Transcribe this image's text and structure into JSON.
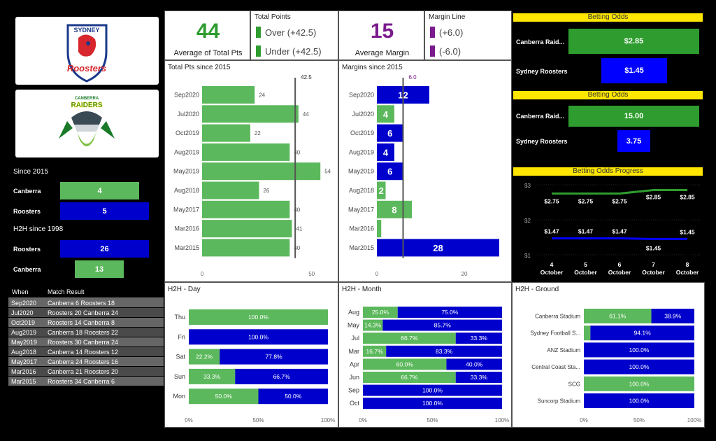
{
  "teams": {
    "home_logo": {
      "top": "SYDNEY",
      "main": "Roosters"
    },
    "away_logo": {
      "top": "CANBERRA",
      "main": "RAIDERS"
    }
  },
  "since2015": {
    "title": "Since 2015",
    "rows": [
      {
        "team": "Canberra",
        "value": "4",
        "color": "#5cb85c"
      },
      {
        "team": "Roosters",
        "value": "5",
        "color": "#0000cc"
      }
    ]
  },
  "h2h1998": {
    "title": "H2H since 1998",
    "rows": [
      {
        "team": "Roosters",
        "value": "26",
        "color": "#0000cc"
      },
      {
        "team": "Canberra",
        "value": "13",
        "color": "#5cb85c"
      }
    ]
  },
  "match_results": {
    "headers": [
      "When",
      "Match Result"
    ],
    "rows": [
      [
        "Sep2020",
        "Canberra 6 Roosters 18"
      ],
      [
        "Jul2020",
        "Roosters 20 Canberra 24"
      ],
      [
        "Oct2019",
        "Roosters 14 Canberra 8"
      ],
      [
        "Aug2019",
        "Canberra 18 Roosters 22"
      ],
      [
        "May2019",
        "Roosters 30 Canberra 24"
      ],
      [
        "Aug2018",
        "Canberra 14 Roosters 12"
      ],
      [
        "May2017",
        "Canberra 24 Roosters 16"
      ],
      [
        "Mar2016",
        "Canberra 21 Roosters 20"
      ],
      [
        "Mar2015",
        "Roosters 34 Canberra 6"
      ]
    ]
  },
  "kpi_total": {
    "value": "44",
    "label": "Average of Total Pts"
  },
  "total_points_legend": {
    "title": "Total Points",
    "items": [
      "Over (+42.5)",
      "Under (+42.5)"
    ]
  },
  "kpi_margin": {
    "value": "15",
    "label": "Average Margin"
  },
  "margin_line_legend": {
    "title": "Margin Line",
    "items": [
      "(+6.0)",
      "(-6.0)"
    ]
  },
  "odds1": {
    "title": "Betting Odds",
    "rows": [
      {
        "team": "Canberra Raid...",
        "value": "$2.85",
        "color": "#2e9c2e"
      },
      {
        "team": "Sydney Roosters",
        "value": "$1.45",
        "color": "#0000ff"
      }
    ]
  },
  "odds2": {
    "title": "Betting Odds",
    "rows": [
      {
        "team": "Canberra Raid...",
        "value": "15.00",
        "color": "#2e9c2e"
      },
      {
        "team": "Sydney Roosters",
        "value": "3.75",
        "color": "#0000ff"
      }
    ]
  },
  "chart_data": [
    {
      "type": "bar",
      "title": "Total Pts since 2015",
      "categories": [
        "Sep2020",
        "Jul2020",
        "Oct2019",
        "Aug2019",
        "May2019",
        "Aug2018",
        "May2017",
        "Mar2016",
        "Mar2015"
      ],
      "values": [
        24,
        44,
        22,
        40,
        54,
        26,
        40,
        41,
        40
      ],
      "reference_line": {
        "value": 42.5,
        "label": "42.5"
      },
      "xticks": [
        0,
        50
      ],
      "xlim": [
        0,
        60
      ]
    },
    {
      "type": "bar",
      "title": "Margins since 2015",
      "categories": [
        "Sep2020",
        "Jul2020",
        "Oct2019",
        "Aug2019",
        "May2019",
        "Aug2018",
        "May2017",
        "Mar2016",
        "Mar2015"
      ],
      "values": [
        12,
        4,
        6,
        4,
        6,
        2,
        8,
        1,
        28
      ],
      "bar_labels": [
        "12",
        "4",
        "6",
        "4",
        "6",
        "2",
        "8",
        "",
        "28"
      ],
      "colors": [
        "#0000cc",
        "#5cb85c",
        "#0000cc",
        "#0000cc",
        "#0000cc",
        "#5cb85c",
        "#5cb85c",
        "#5cb85c",
        "#0000cc"
      ],
      "reference_line": {
        "value": 6,
        "label": "6.0"
      },
      "xticks": [
        0,
        20
      ],
      "xlim": [
        0,
        28
      ]
    },
    {
      "type": "line",
      "title": "Betting Odds Progress",
      "x": [
        "4\nOctober",
        "5\nOctober",
        "6\nOctober",
        "7\nOctober",
        "8\nOctober"
      ],
      "series": [
        {
          "values": [
            2.75,
            2.75,
            2.75,
            2.85,
            2.85
          ],
          "labels": [
            "$2.75",
            "$2.75",
            "$2.75",
            "$2.85",
            "$2.85"
          ],
          "color": "#2e9c2e"
        },
        {
          "values": [
            1.47,
            1.47,
            1.47,
            1.45,
            1.45
          ],
          "labels": [
            "$1.47",
            "$1.47",
            "$1.47",
            "$1.45",
            "$1.45"
          ],
          "color": "#0000ff"
        }
      ],
      "yticks": [
        "$3",
        "$2",
        "$1"
      ],
      "ylim": [
        1,
        3
      ]
    },
    {
      "type": "bar",
      "stacked": true,
      "title": "H2H - Day",
      "categories": [
        "Thu",
        "Fri",
        "Sat",
        "Sun",
        "Mon"
      ],
      "series": [
        {
          "values": [
            100,
            0,
            22.2,
            33.3,
            50
          ],
          "color": "#5cb85c"
        },
        {
          "values": [
            0,
            100,
            77.8,
            66.7,
            50
          ],
          "color": "#0000cc"
        }
      ],
      "xticks": [
        "0%",
        "50%",
        "100%"
      ]
    },
    {
      "type": "bar",
      "stacked": true,
      "title": "H2H - Month",
      "categories": [
        "Aug",
        "May",
        "Jul",
        "Mar",
        "Apr",
        "Jun",
        "Sep",
        "Oct"
      ],
      "series": [
        {
          "values": [
            25,
            14.3,
            66.7,
            16.7,
            60,
            66.7,
            0,
            0
          ],
          "color": "#5cb85c"
        },
        {
          "values": [
            75,
            85.7,
            33.3,
            83.3,
            40,
            33.3,
            100,
            100
          ],
          "color": "#0000cc"
        }
      ],
      "xticks": [
        "0%",
        "50%",
        "100%"
      ]
    },
    {
      "type": "bar",
      "stacked": true,
      "title": "H2H - Ground",
      "categories": [
        "Canberra Stadium",
        "Sydney Football S...",
        "ANZ Stadium",
        "Central Coast Sta...",
        "SCG",
        "Suncorp Stadium"
      ],
      "series": [
        {
          "values": [
            61.1,
            5.9,
            0,
            0,
            100,
            0
          ],
          "color": "#5cb85c"
        },
        {
          "values": [
            38.9,
            94.1,
            100,
            100,
            0,
            100
          ],
          "color": "#0000cc"
        }
      ],
      "labels": [
        [
          "61.1%",
          "38.9%"
        ],
        [
          "",
          "94.1%"
        ],
        [
          "",
          "100.0%"
        ],
        [
          "",
          "100.0%"
        ],
        [
          "100.0%",
          ""
        ],
        [
          "",
          "100.0%"
        ]
      ],
      "xticks": [
        "0%",
        "50%",
        "100%"
      ]
    }
  ]
}
